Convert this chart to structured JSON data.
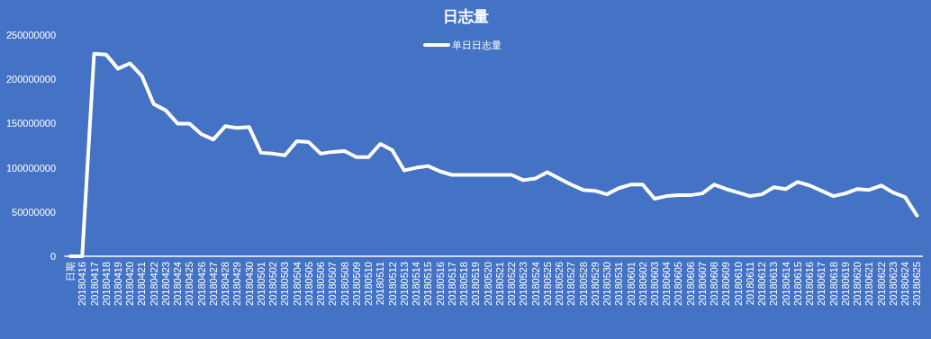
{
  "chart_data": {
    "type": "line",
    "title": "日志量",
    "categories": [
      "日期",
      "20180416",
      "20180417",
      "20180418",
      "20180419",
      "20180420",
      "20180421",
      "20180422",
      "20180423",
      "20180424",
      "20180425",
      "20180426",
      "20180427",
      "20180428",
      "20180429",
      "20180430",
      "20180501",
      "20180502",
      "20180503",
      "20180504",
      "20180505",
      "20180506",
      "20180507",
      "20180508",
      "20180509",
      "20180510",
      "20180511",
      "20180512",
      "20180513",
      "20180514",
      "20180515",
      "20180516",
      "20180517",
      "20180518",
      "20180519",
      "20180520",
      "20180521",
      "20180522",
      "20180523",
      "20180524",
      "20180525",
      "20180526",
      "20180527",
      "20180528",
      "20180529",
      "20180530",
      "20180531",
      "20180601",
      "20180602",
      "20180603",
      "20180604",
      "20180605",
      "20180606",
      "20180607",
      "20180608",
      "20180609",
      "20180610",
      "20180611",
      "20180612",
      "20180613",
      "20180614",
      "20180615",
      "20180616",
      "20180617",
      "20180618",
      "20180619",
      "20180620",
      "20180621",
      "20180622",
      "20180623",
      "20180624",
      "20180625"
    ],
    "series": [
      {
        "name": "单日日志量",
        "color": "#ffffff",
        "values": [
          0,
          0,
          229000000,
          228000000,
          212000000,
          218000000,
          204000000,
          172000000,
          165000000,
          150000000,
          150000000,
          138000000,
          132000000,
          147000000,
          145000000,
          146000000,
          117000000,
          116000000,
          114000000,
          130000000,
          129000000,
          116000000,
          118000000,
          119000000,
          112000000,
          112000000,
          127000000,
          120000000,
          97000000,
          100000000,
          102000000,
          96000000,
          92000000,
          92000000,
          92000000,
          92000000,
          92000000,
          92000000,
          86000000,
          88000000,
          95000000,
          88000000,
          81000000,
          75000000,
          74000000,
          70000000,
          77000000,
          81000000,
          81000000,
          65000000,
          68000000,
          69000000,
          69000000,
          71000000,
          81000000,
          76000000,
          72000000,
          68000000,
          70000000,
          78000000,
          76000000,
          84000000,
          80000000,
          74000000,
          68000000,
          71000000,
          76000000,
          75000000,
          80000000,
          72000000,
          67000000,
          46000000
        ]
      }
    ],
    "ylim": [
      0,
      250000000
    ],
    "yticks": [
      0,
      50000000,
      100000000,
      150000000,
      200000000,
      250000000
    ],
    "legend": "top",
    "grid": false,
    "marker": "none"
  }
}
